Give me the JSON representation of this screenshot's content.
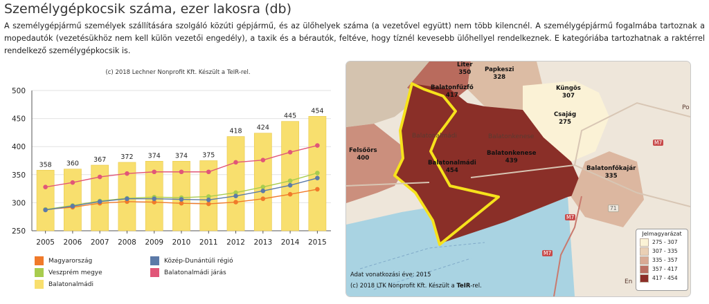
{
  "title": "Személygépkocsik száma, ezer lakosra (db)",
  "description": "A személygépjármű személyek szállítására szolgáló közúti gépjármű, és az ülőhelyek száma (a vezetővel együtt) nem több kilencnél. A személygépjármű fogalmába tartoznak a mopedautók (vezetésükhöz nem kell külön vezetői engedély), a taxik és a bérautók, feltéve, hogy tíznél kevesebb ülőhellyel rendelkeznek. E kategóriába tartozhatnak a raktérrel rendelkező személygépkocsik is.",
  "chart_data": {
    "type": "bar",
    "subtitle": "(c) 2018 Lechner Nonprofit Kft. Készült a TeIR-rel.",
    "categories": [
      "2005",
      "2006",
      "2007",
      "2008",
      "2009",
      "2010",
      "2011",
      "2012",
      "2013",
      "2014",
      "2015"
    ],
    "ylim": [
      250,
      500
    ],
    "yticks": [
      250,
      300,
      350,
      400,
      450,
      500
    ],
    "grid": true,
    "bar_series": {
      "name": "Balatonalmádi",
      "color": "#f8df6e",
      "values": [
        358,
        360,
        367,
        372,
        374,
        374,
        375,
        418,
        424,
        445,
        454
      ]
    },
    "series": [
      {
        "name": "Magyarország",
        "color": "#f07a2a",
        "values": [
          288,
          292,
          299,
          302,
          301,
          299,
          298,
          301,
          307,
          315,
          324
        ]
      },
      {
        "name": "Veszprém megye",
        "color": "#a8cc4e",
        "values": [
          288,
          295,
          303,
          308,
          310,
          309,
          311,
          318,
          328,
          339,
          353
        ]
      },
      {
        "name": "Közép-Dunántúli régió",
        "color": "#5c7aa8",
        "values": [
          287,
          294,
          302,
          307,
          307,
          306,
          305,
          312,
          321,
          331,
          344
        ]
      },
      {
        "name": "Balatonalmádi járás",
        "color": "#e15678",
        "values": [
          328,
          336,
          346,
          352,
          355,
          355,
          355,
          372,
          376,
          390,
          402
        ]
      }
    ],
    "legend_placement": "bottom"
  },
  "legend": {
    "items": [
      {
        "label": "Magyarország",
        "color": "#f07a2a"
      },
      {
        "label": "Közép-Dunántúli régió",
        "color": "#5c7aa8"
      },
      {
        "label": "Veszprém megye",
        "color": "#a8cc4e"
      },
      {
        "label": "Balatonalmádi járás",
        "color": "#e15678"
      },
      {
        "label": "Balatonalmádi",
        "color": "#f8df6e"
      }
    ]
  },
  "map": {
    "places": [
      {
        "name": "Liter",
        "value": "350"
      },
      {
        "name": "Papkeszi",
        "value": "328"
      },
      {
        "name": "Balatonfűzfő",
        "value": "417"
      },
      {
        "name": "Küngös",
        "value": "307"
      },
      {
        "name": "Csajág",
        "value": "275"
      },
      {
        "name": "Felsőörs",
        "value": "400"
      },
      {
        "name": "Balatonalmádi",
        "value": "454"
      },
      {
        "name": "Balatonkenese",
        "value": "439"
      },
      {
        "name": "Balatonfőkajár",
        "value": "335"
      }
    ],
    "background_labels": [
      "Balatonkenese",
      "Balatonalmádi"
    ],
    "roads": [
      "M7",
      "M7",
      "M7",
      "71"
    ],
    "edge_labels": [
      "Po",
      "En"
    ],
    "legend_title": "Jelmagyarázat",
    "legend_items": [
      {
        "label": "275 - 307",
        "color": "#fbf3d6"
      },
      {
        "label": "307 - 335",
        "color": "#ead0b5"
      },
      {
        "label": "335 - 357",
        "color": "#d9aa94"
      },
      {
        "label": "357 - 417",
        "color": "#bb6f62"
      },
      {
        "label": "417 - 454",
        "color": "#8c2e28"
      }
    ],
    "data_year": "Adat vonatkozási éve: 2015",
    "credit_prefix": "(c) 2018 LTK Nonprofit Kft. Készült a ",
    "credit_bold": "TeIR",
    "credit_suffix": "-rel."
  }
}
